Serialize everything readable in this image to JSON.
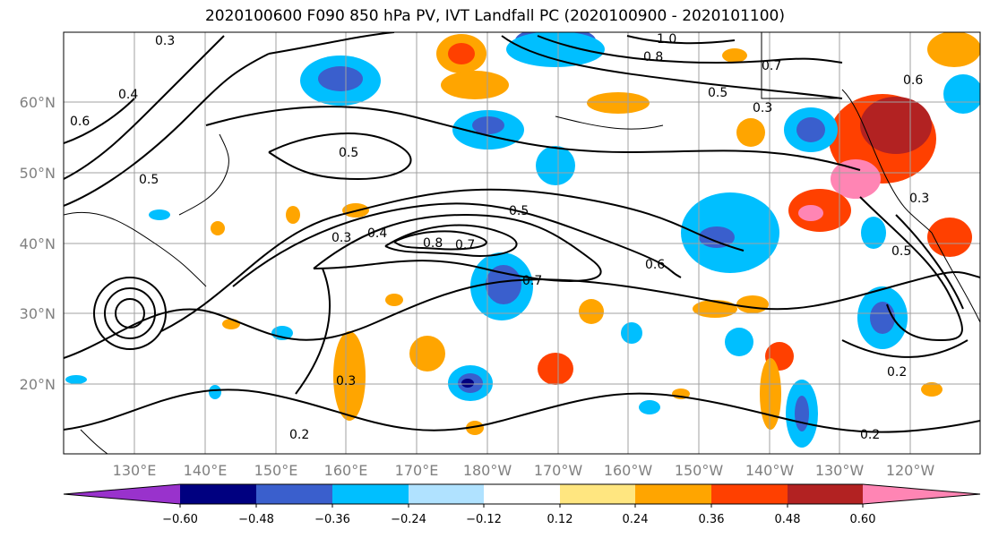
{
  "title": "2020100600 F090 850 hPa PV, IVT Landfall PC (2020100900 - 2020101100)",
  "lat_labels": [
    "60°N",
    "50°N",
    "40°N",
    "30°N",
    "20°N"
  ],
  "lon_labels": [
    "130°E",
    "140°E",
    "150°E",
    "160°E",
    "170°E",
    "180°W",
    "170°W",
    "160°W",
    "150°W",
    "140°W",
    "130°W",
    "120°W"
  ],
  "contour_labels": [
    "0.3",
    "0.4",
    "0.5",
    "0.5",
    "0.6",
    "0.7",
    "0.7",
    "0.8",
    "0.5",
    "0.3",
    "0.4",
    "0.3",
    "0.2",
    "0.2",
    "1.0",
    "0.8",
    "0.7",
    "0.5",
    "0.6",
    "0.5",
    "0.3",
    "0.6",
    "0.2",
    "0.3"
  ],
  "colorbar": {
    "ticks": [
      "−0.60",
      "−0.48",
      "−0.36",
      "−0.24",
      "−0.12",
      "0.12",
      "0.24",
      "0.36",
      "0.48",
      "0.60"
    ],
    "colors": [
      "#9932cc",
      "#000080",
      "#3a5fcd",
      "#00bfff",
      "#b0e2ff",
      "#ffffff",
      "#ffe680",
      "#ffa500",
      "#ff4000",
      "#b22222",
      "#ff85b4"
    ]
  }
}
